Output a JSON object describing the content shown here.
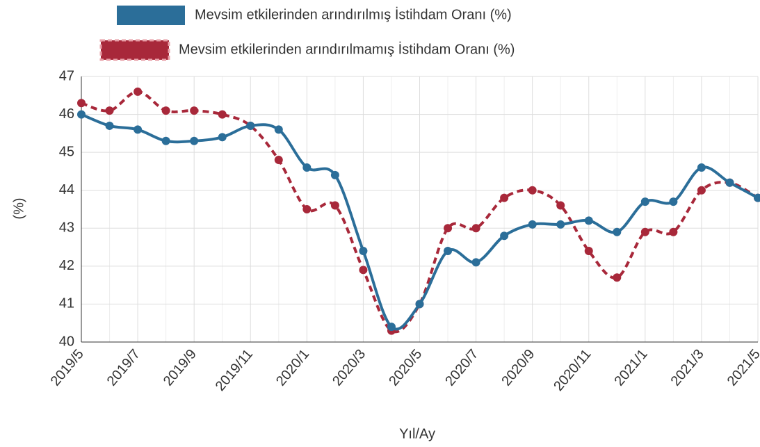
{
  "chart_data": {
    "type": "line",
    "xlabel": "Yıl/Ay",
    "ylabel": "(%)",
    "categories": [
      "2019/5",
      null,
      "2019/7",
      null,
      "2019/9",
      null,
      "2019/11",
      null,
      "2020/1",
      null,
      "2020/3",
      null,
      "2020/5",
      null,
      "2020/7",
      null,
      "2020/9",
      null,
      "2020/11",
      null,
      "2021/1",
      null,
      "2021/3",
      null,
      "2021/5"
    ],
    "series": [
      {
        "name": "Mevsim etkilerinden arındırılmış İstihdam Oranı (%)",
        "color": "#2b6e99",
        "dashed": false,
        "values": [
          46.0,
          45.7,
          45.6,
          45.3,
          45.3,
          45.4,
          45.7,
          45.6,
          44.6,
          44.4,
          42.4,
          40.4,
          41.0,
          42.4,
          42.1,
          42.8,
          43.1,
          43.1,
          43.2,
          42.9,
          43.7,
          43.7,
          44.6,
          44.2,
          43.8
        ]
      },
      {
        "name": "Mevsim etkilerinden arındırılmamış İstihdam Oranı (%)",
        "color": "#a8283a",
        "dashed": true,
        "values": [
          46.3,
          46.1,
          46.6,
          46.1,
          46.1,
          46.0,
          45.7,
          44.8,
          43.5,
          43.6,
          41.9,
          40.3,
          41.0,
          43.0,
          43.0,
          43.8,
          44.0,
          43.6,
          42.4,
          41.7,
          42.9,
          42.9,
          44.0,
          44.2,
          43.8
        ]
      }
    ],
    "ylim": [
      40,
      47
    ],
    "yticks": [
      40,
      41,
      42,
      43,
      44,
      45,
      46,
      47
    ],
    "grid": true
  }
}
